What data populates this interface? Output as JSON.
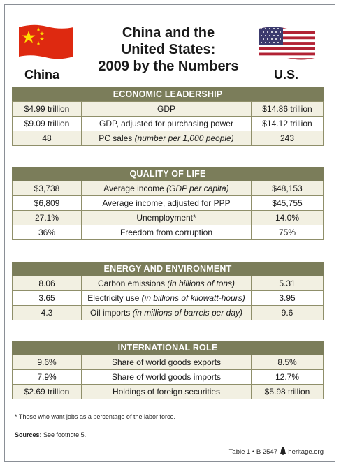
{
  "title_lines": [
    "China and the",
    "United States:",
    "2009 by the Numbers"
  ],
  "countries": {
    "left": "China",
    "right": "U.S."
  },
  "flags": {
    "china": "china-flag-icon",
    "us": "us-flag-icon"
  },
  "colors": {
    "section_header": "#7b7d5a",
    "row_shade": "#f2f0e2",
    "cn_red": "#de2910",
    "cn_yellow": "#ffde00",
    "us_blue": "#3c3b6e",
    "us_red": "#b22234"
  },
  "sections": [
    {
      "title": "ECONOMIC LEADERSHIP",
      "rows": [
        {
          "china": "$4.99 trillion",
          "label": "GDP",
          "note": "",
          "us": "$14.86 trillion"
        },
        {
          "china": "$9.09 trillion",
          "label": "GDP, adjusted for purchasing power",
          "note": "",
          "us": "$14.12 trillion"
        },
        {
          "china": "48",
          "label": "PC sales",
          "note": "(number per 1,000 people)",
          "us": "243"
        }
      ]
    },
    {
      "title": "QUALITY OF LIFE",
      "rows": [
        {
          "china": "$3,738",
          "label": "Average income",
          "note": "(GDP per capita)",
          "us": "$48,153"
        },
        {
          "china": "$6,809",
          "label": "Average income, adjusted for PPP",
          "note": "",
          "us": "$45,755"
        },
        {
          "china": "27.1%",
          "label": "Unemployment*",
          "note": "",
          "us": "14.0%"
        },
        {
          "china": "36%",
          "label": "Freedom from corruption",
          "note": "",
          "us": "75%"
        }
      ]
    },
    {
      "title": "ENERGY AND ENVIRONMENT",
      "rows": [
        {
          "china": "8.06",
          "label": "Carbon emissions",
          "note": "(in billions of tons)",
          "us": "5.31"
        },
        {
          "china": "3.65",
          "label": "Electricity use",
          "note": "(in billions of kilowatt-hours)",
          "us": "3.95"
        },
        {
          "china": "4.3",
          "label": "Oil imports",
          "note": "(in millions of barrels per day)",
          "us": "9.6"
        }
      ]
    },
    {
      "title": "INTERNATIONAL ROLE",
      "rows": [
        {
          "china": "9.6%",
          "label": "Share of world goods exports",
          "note": "",
          "us": "8.5%"
        },
        {
          "china": "7.9%",
          "label": "Share of world goods imports",
          "note": "",
          "us": "12.7%"
        },
        {
          "china": "$2.69 trillion",
          "label": "Holdings of foreign securities",
          "note": "",
          "us": "$5.98 trillion"
        }
      ]
    }
  ],
  "footnote": "* Those who want jobs as a percentage of the labor force.",
  "sources": {
    "label": "Sources:",
    "text": "See footnote 5."
  },
  "credit": {
    "table": "Table 1 • B 2547",
    "icon": "liberty-bell-icon",
    "site": "heritage.org"
  }
}
